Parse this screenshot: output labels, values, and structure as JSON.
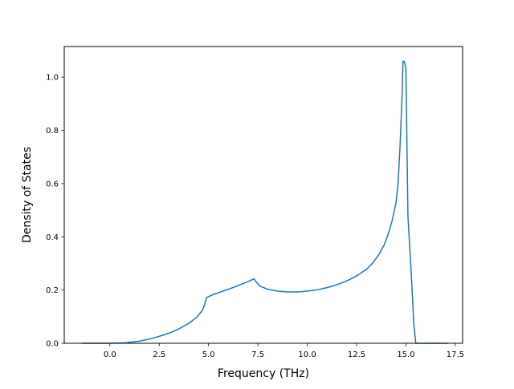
{
  "chart_data": {
    "type": "line",
    "title": "",
    "xlabel": "Frequency (THz)",
    "ylabel": "Density of States",
    "xlim": [
      -2.31,
      17.87
    ],
    "ylim": [
      0.0,
      1.115
    ],
    "grid": false,
    "xticks": [
      0.0,
      2.5,
      5.0,
      7.5,
      10.0,
      12.5,
      15.0,
      17.5
    ],
    "xtick_labels": [
      "0.0",
      "2.5",
      "5.0",
      "7.5",
      "10.0",
      "12.5",
      "15.0",
      "17.5"
    ],
    "yticks": [
      0.0,
      0.2,
      0.4,
      0.6,
      0.8,
      1.0
    ],
    "ytick_labels": [
      "0.0",
      "0.2",
      "0.4",
      "0.6",
      "0.8",
      "1.0"
    ],
    "series": [
      {
        "color": "#1f77b4",
        "x": [
          -1.4,
          0.0,
          0.8,
          1.5,
          2.0,
          2.5,
          3.0,
          3.5,
          4.0,
          4.4,
          4.7,
          4.8,
          4.9,
          5.0,
          5.2,
          5.5,
          6.0,
          6.5,
          7.0,
          7.3,
          7.4,
          7.6,
          8.0,
          8.5,
          9.0,
          9.5,
          10.0,
          10.5,
          11.0,
          11.5,
          12.0,
          12.5,
          13.0,
          13.3,
          13.6,
          13.9,
          14.1,
          14.3,
          14.5,
          14.6,
          14.7,
          14.8,
          14.85,
          14.9,
          14.95,
          15.0,
          15.05,
          15.1,
          15.2,
          15.3,
          15.4,
          15.5,
          15.6,
          16.0,
          16.5,
          17.0,
          17.1
        ],
        "y": [
          0.0,
          0.0,
          0.002,
          0.008,
          0.016,
          0.026,
          0.038,
          0.054,
          0.075,
          0.098,
          0.125,
          0.145,
          0.172,
          0.175,
          0.182,
          0.19,
          0.203,
          0.217,
          0.232,
          0.242,
          0.232,
          0.215,
          0.203,
          0.196,
          0.193,
          0.193,
          0.196,
          0.201,
          0.209,
          0.22,
          0.234,
          0.253,
          0.278,
          0.3,
          0.33,
          0.37,
          0.41,
          0.46,
          0.53,
          0.6,
          0.74,
          0.92,
          1.06,
          1.06,
          1.05,
          1.03,
          0.75,
          0.48,
          0.35,
          0.22,
          0.07,
          0.0,
          0.0,
          0.0,
          0.0,
          0.0,
          0.0
        ]
      }
    ]
  }
}
